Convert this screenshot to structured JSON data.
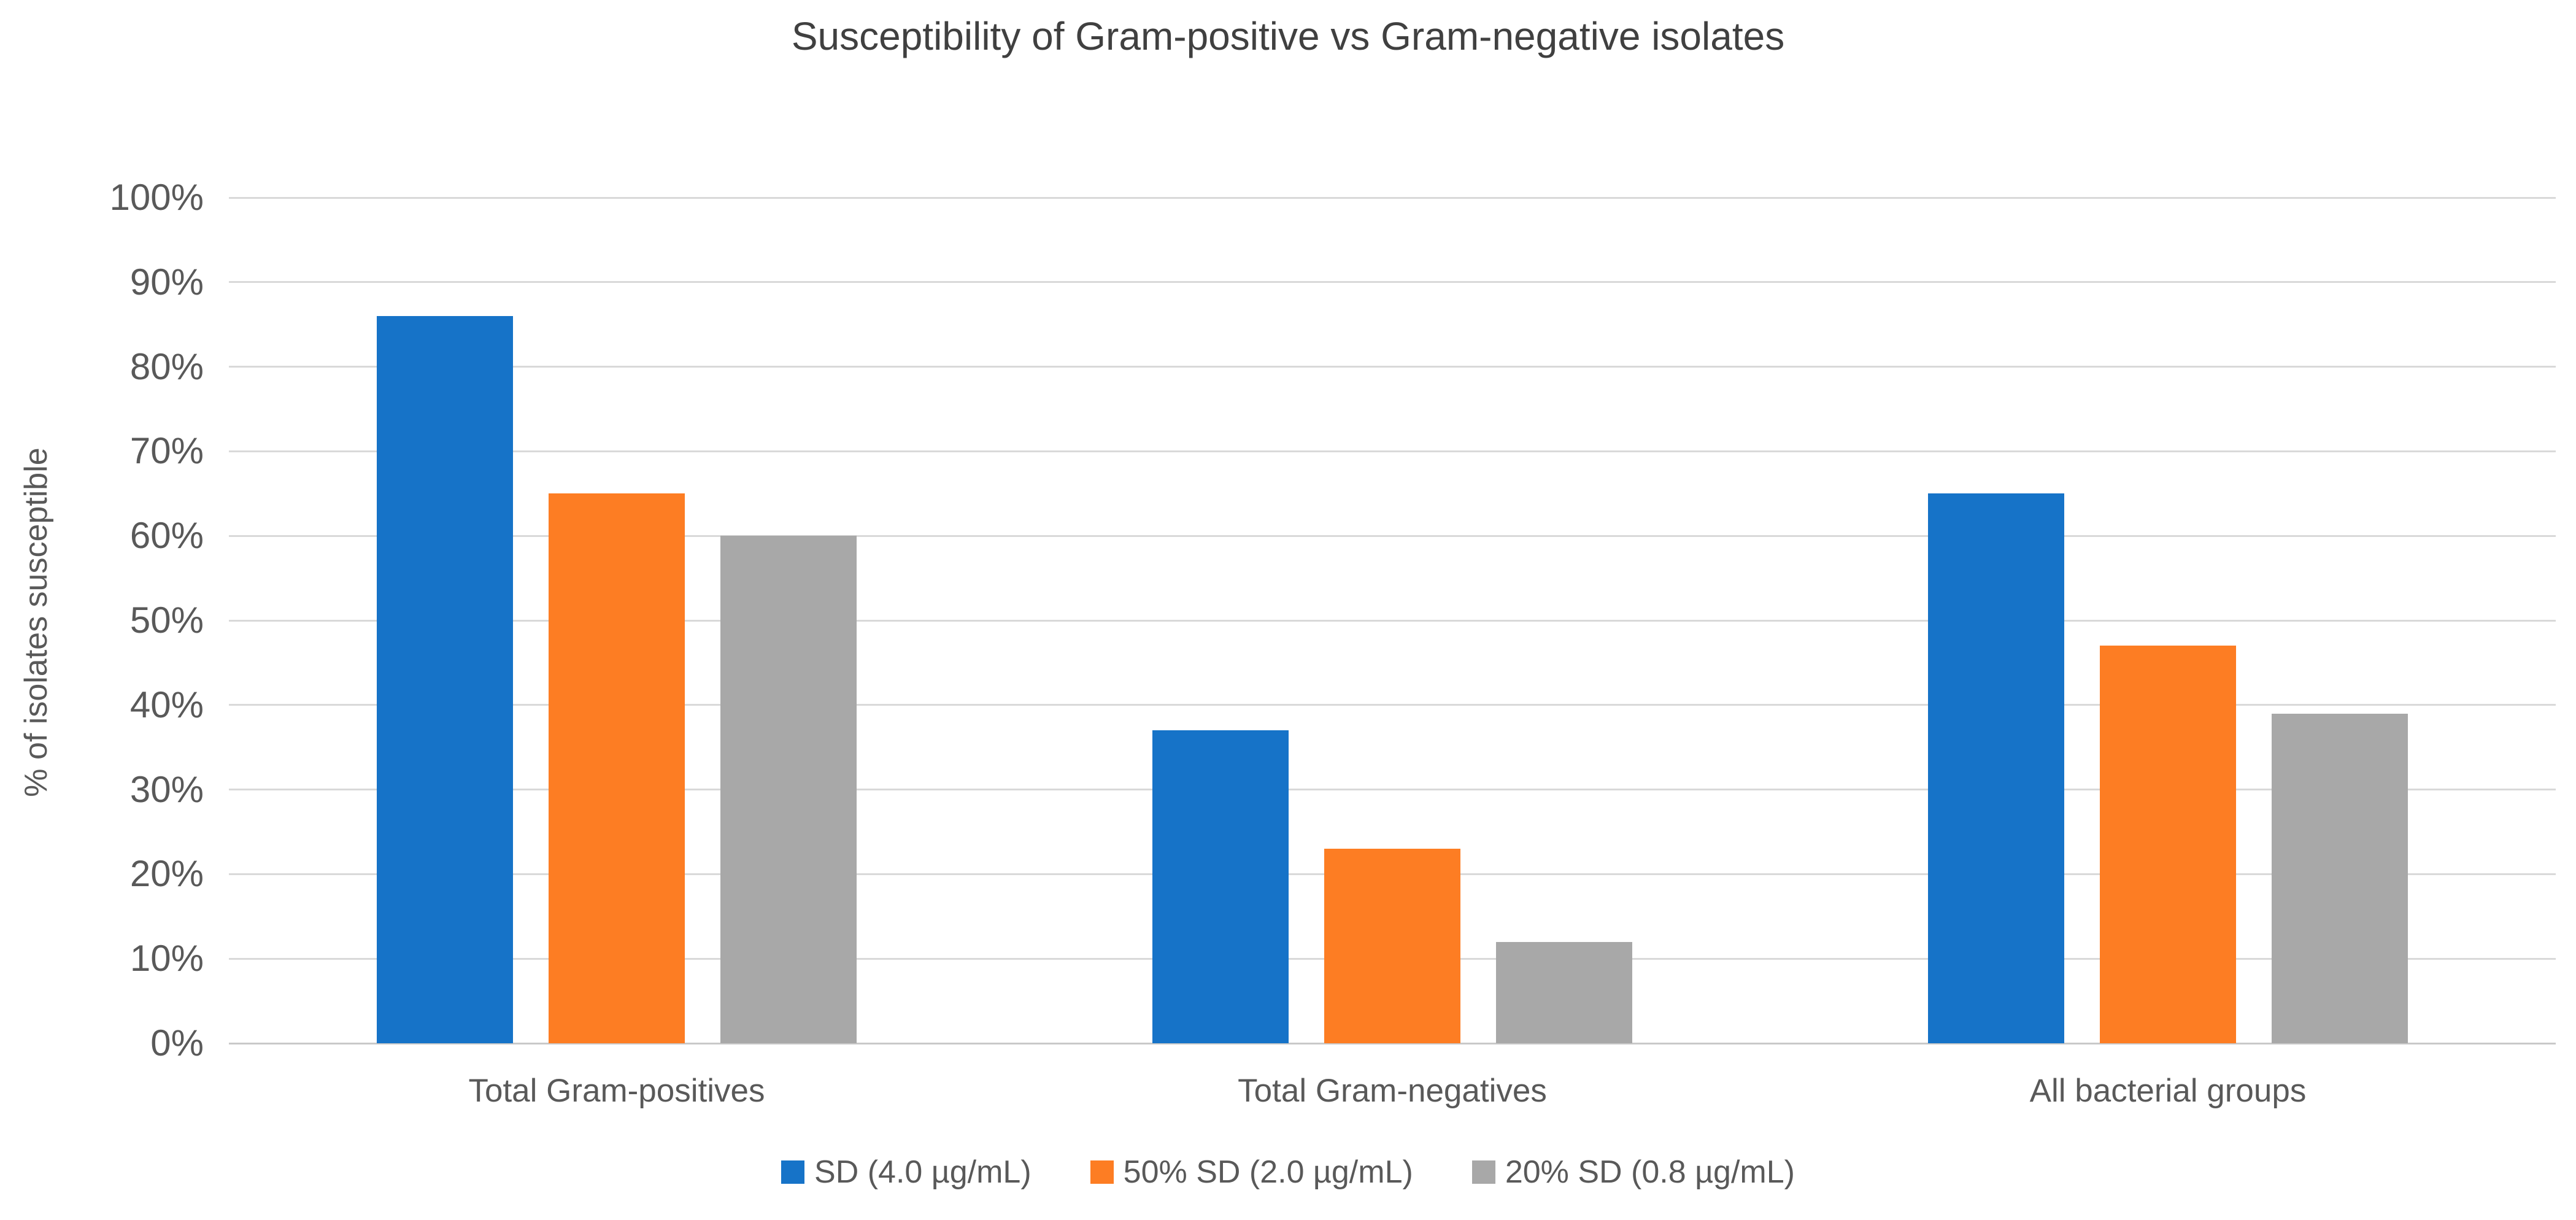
{
  "chart_data": {
    "type": "bar",
    "title": "Susceptibility of Gram-positive vs Gram-negative isolates",
    "xlabel": "",
    "ylabel": "% of isolates susceptible",
    "categories": [
      "Total Gram-positives",
      "Total Gram-negatives",
      "All bacterial groups"
    ],
    "series": [
      {
        "name": "SD (4.0 µg/mL)",
        "color": "#1673C8",
        "values": [
          86,
          37,
          65
        ]
      },
      {
        "name": "50% SD (2.0 µg/mL)",
        "color": "#FD7D23",
        "values": [
          65,
          23,
          47
        ]
      },
      {
        "name": "20% SD (0.8 µg/mL)",
        "color": "#A8A8A8",
        "values": [
          60,
          12,
          39
        ]
      }
    ],
    "ylim": [
      0,
      100
    ],
    "tick_step": 10,
    "tick_suffix": "%",
    "grid": true,
    "legend_position": "bottom"
  }
}
